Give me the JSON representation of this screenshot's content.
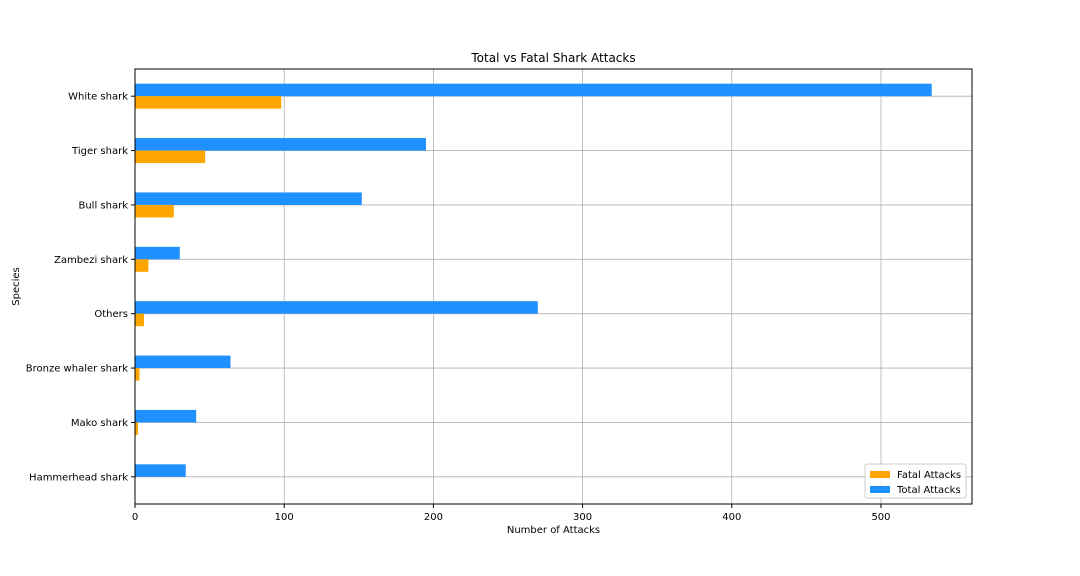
{
  "chart_data": {
    "type": "bar",
    "orientation": "horizontal",
    "title": "Total vs Fatal Shark Attacks",
    "xlabel": "Number of Attacks",
    "ylabel": "Species",
    "categories": [
      "White shark",
      "Tiger shark",
      "Bull shark",
      "Zambezi shark",
      "Others",
      "Bronze whaler shark",
      "Mako shark",
      "Hammerhead shark"
    ],
    "series": [
      {
        "name": "Total Attacks",
        "color": "#1e90ff",
        "values": [
          534,
          195,
          152,
          30,
          270,
          64,
          41,
          34
        ]
      },
      {
        "name": "Fatal Attacks",
        "color": "#ffa500",
        "values": [
          98,
          47,
          26,
          9,
          6,
          3,
          2,
          0
        ]
      }
    ],
    "xlim": [
      0,
      561
    ],
    "xticks": [
      0,
      100,
      200,
      300,
      400,
      500
    ],
    "grid": true,
    "legend_position": "lower-right"
  }
}
